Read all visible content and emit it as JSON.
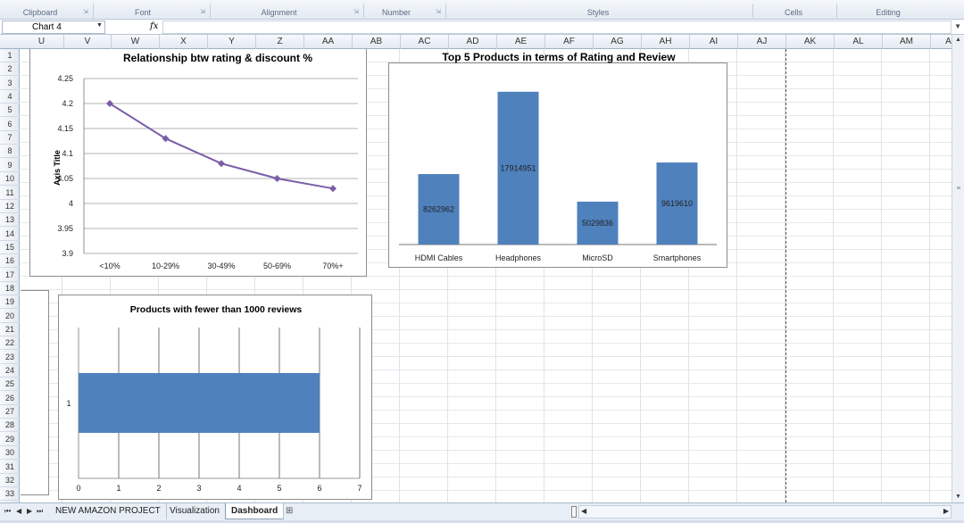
{
  "ribbon": {
    "groups": [
      "Clipboard",
      "Font",
      "Alignment",
      "Number",
      "Styles",
      "Cells",
      "Editing"
    ]
  },
  "formula_bar": {
    "name_box": "Chart 4",
    "fx_label": "fx",
    "formula": ""
  },
  "columns": [
    "U",
    "V",
    "W",
    "X",
    "Y",
    "Z",
    "AA",
    "AB",
    "AC",
    "AD",
    "AE",
    "AF",
    "AG",
    "AH",
    "AI",
    "AJ",
    "AK",
    "AL",
    "AM",
    "A"
  ],
  "rows": [
    "1",
    "2",
    "3",
    "4",
    "5",
    "6",
    "7",
    "8",
    "9",
    "10",
    "11",
    "12",
    "13",
    "14",
    "15",
    "16",
    "17",
    "18",
    "19",
    "20",
    "21",
    "22",
    "23",
    "24",
    "25",
    "26",
    "27",
    "28",
    "29",
    "30",
    "31",
    "32",
    "33"
  ],
  "chart_data": [
    {
      "type": "line",
      "title": "Relationship btw rating & discount %",
      "xlabel": "",
      "ylabel": "Axis Title",
      "categories": [
        "<10%",
        "10-29%",
        "30-49%",
        "50-69%",
        "70%+"
      ],
      "values": [
        4.2,
        4.13,
        4.08,
        4.05,
        4.03
      ],
      "yticks": [
        "4.25",
        "4.2",
        "4.15",
        "4.1",
        "4.05",
        "4",
        "3.95",
        "3.9"
      ],
      "ylim": [
        3.9,
        4.25
      ],
      "grid": true,
      "color": "#7b5ea7"
    },
    {
      "type": "bar",
      "title": "Top 5 Products in terms of Rating and Review",
      "categories": [
        "HDMI Cables",
        "Headphones",
        "MicroSD",
        "Smartphones"
      ],
      "values": [
        8262962,
        17914951,
        5029836,
        9619610
      ],
      "data_labels": [
        "8262962",
        "17914951",
        "5029836",
        "9619610"
      ],
      "ylim": [
        0,
        18000000
      ],
      "grid": false,
      "color": "#4f81bd"
    },
    {
      "type": "bar",
      "orientation": "horizontal",
      "title": "Products with fewer than 1000 reviews",
      "categories": [
        "1"
      ],
      "values": [
        6
      ],
      "xticks": [
        "0",
        "1",
        "2",
        "3",
        "4",
        "5",
        "6",
        "7"
      ],
      "xlim": [
        0,
        7
      ],
      "grid": true,
      "color": "#4f81bd"
    }
  ],
  "sheet_tabs": {
    "tabs": [
      "NEW AMAZON PROJECT",
      "Visualization",
      "Dashboard"
    ],
    "active": "Dashboard"
  }
}
